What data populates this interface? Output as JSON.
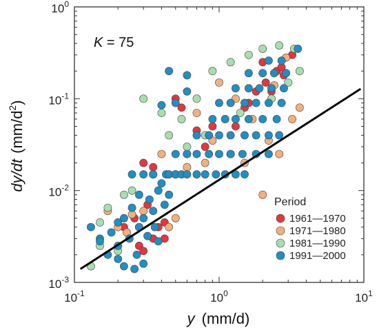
{
  "chart_data": {
    "type": "scatter",
    "xscale": "log",
    "yscale": "log",
    "xlim": [
      0.1,
      10
    ],
    "ylim": [
      0.001,
      1
    ],
    "grid": false,
    "xlabel": {
      "var": "y",
      "unit": "(mm/d)"
    },
    "ylabel": {
      "var": "dy/dt",
      "unit": "(mm/d",
      "unit_sup": "2",
      "unit_close": ")"
    },
    "x_ticks": [
      {
        "value": 0.1,
        "base": "10",
        "exp": "-1"
      },
      {
        "value": 1,
        "base": "10",
        "exp": "0"
      },
      {
        "value": 10,
        "base": "10",
        "exp": "1"
      }
    ],
    "y_ticks": [
      {
        "value": 0.001,
        "base": "10",
        "exp": "-3"
      },
      {
        "value": 0.01,
        "base": "10",
        "exp": "-2"
      },
      {
        "value": 0.1,
        "base": "10",
        "exp": "-1"
      },
      {
        "value": 1,
        "base": "10",
        "exp": "0"
      }
    ],
    "annotation": {
      "symbol": "K",
      "text": " = 75"
    },
    "fit_line": {
      "x": [
        0.11,
        9.5
      ],
      "y": [
        0.0014,
        0.128
      ],
      "color": "#000000"
    },
    "legend": {
      "title": "Period",
      "position": "bottom-right"
    },
    "series": [
      {
        "name": "1961—1970",
        "color": "#e8343c",
        "points": [
          [
            0.28,
            0.0025
          ],
          [
            0.3,
            0.0022
          ],
          [
            0.35,
            0.003
          ],
          [
            0.38,
            0.004
          ],
          [
            0.42,
            0.0045
          ],
          [
            0.32,
            0.007
          ],
          [
            0.3,
            0.02
          ],
          [
            0.35,
            0.018
          ],
          [
            0.5,
            0.015
          ],
          [
            0.6,
            0.025
          ],
          [
            0.8,
            0.03
          ],
          [
            0.7,
            0.045
          ],
          [
            0.9,
            0.05
          ],
          [
            1.1,
            0.06
          ],
          [
            1.3,
            0.05
          ],
          [
            1.5,
            0.08
          ],
          [
            1.8,
            0.12
          ],
          [
            2.1,
            0.15
          ],
          [
            2.5,
            0.2
          ],
          [
            2.8,
            0.18
          ],
          [
            3.2,
            0.3
          ],
          [
            2.7,
            0.22
          ],
          [
            0.5,
            0.1
          ],
          [
            0.55,
            0.08
          ],
          [
            0.42,
            0.003
          ],
          [
            0.22,
            0.004
          ],
          [
            0.26,
            0.005
          ],
          [
            2.3,
            0.12
          ],
          [
            1.6,
            0.09
          ],
          [
            2.0,
            0.25
          ]
        ]
      },
      {
        "name": "1971—1980",
        "color": "#f4b07a",
        "points": [
          [
            0.17,
            0.006
          ],
          [
            0.2,
            0.004
          ],
          [
            0.25,
            0.0055
          ],
          [
            0.3,
            0.006
          ],
          [
            0.45,
            0.004
          ],
          [
            0.5,
            0.005
          ],
          [
            0.6,
            0.018
          ],
          [
            0.8,
            0.02
          ],
          [
            1.2,
            0.025
          ],
          [
            1.5,
            0.02
          ],
          [
            2.2,
            0.035
          ],
          [
            2.6,
            0.025
          ],
          [
            3.2,
            0.06
          ],
          [
            3.6,
            0.08
          ],
          [
            2.0,
            0.009
          ],
          [
            0.4,
            0.025
          ],
          [
            0.7,
            0.07
          ],
          [
            1.0,
            0.15
          ],
          [
            1.3,
            0.1
          ],
          [
            2.9,
            0.28
          ],
          [
            2.4,
            0.14
          ],
          [
            1.7,
            0.06
          ],
          [
            0.9,
            0.035
          ],
          [
            0.28,
            0.004
          ],
          [
            0.23,
            0.0035
          ]
        ]
      },
      {
        "name": "1981—1990",
        "color": "#a8ddb0",
        "points": [
          [
            0.15,
            0.0045
          ],
          [
            0.17,
            0.0065
          ],
          [
            0.15,
            0.0025
          ],
          [
            0.13,
            0.0015
          ],
          [
            0.2,
            0.0022
          ],
          [
            0.22,
            0.009
          ],
          [
            0.25,
            0.01
          ],
          [
            0.35,
            0.015
          ],
          [
            0.45,
            0.04
          ],
          [
            0.55,
            0.06
          ],
          [
            0.3,
            0.1
          ],
          [
            0.4,
            0.07
          ],
          [
            0.7,
            0.1
          ],
          [
            0.9,
            0.2
          ],
          [
            1.2,
            0.25
          ],
          [
            1.6,
            0.3
          ],
          [
            2.0,
            0.35
          ],
          [
            2.6,
            0.38
          ],
          [
            3.3,
            0.35
          ],
          [
            3.6,
            0.2
          ],
          [
            3.0,
            0.15
          ],
          [
            2.3,
            0.1
          ],
          [
            1.4,
            0.07
          ],
          [
            0.8,
            0.04
          ],
          [
            0.6,
            0.03
          ]
        ]
      },
      {
        "name": "1991—2000",
        "color": "#1f8fc6",
        "points": [
          [
            0.13,
            0.004
          ],
          [
            0.15,
            0.003
          ],
          [
            0.15,
            0.0028
          ],
          [
            0.17,
            0.002
          ],
          [
            0.18,
            0.0035
          ],
          [
            0.2,
            0.0045
          ],
          [
            0.2,
            0.0025
          ],
          [
            0.22,
            0.005
          ],
          [
            0.22,
            0.0015
          ],
          [
            0.24,
            0.003
          ],
          [
            0.25,
            0.0065
          ],
          [
            0.26,
            0.0014
          ],
          [
            0.28,
            0.004
          ],
          [
            0.28,
            0.009
          ],
          [
            0.3,
            0.005
          ],
          [
            0.3,
            0.0016
          ],
          [
            0.32,
            0.0032
          ],
          [
            0.33,
            0.008
          ],
          [
            0.35,
            0.006
          ],
          [
            0.36,
            0.004
          ],
          [
            0.38,
            0.01
          ],
          [
            0.38,
            0.0028
          ],
          [
            0.4,
            0.012
          ],
          [
            0.42,
            0.007
          ],
          [
            0.45,
            0.009
          ],
          [
            0.43,
            0.015
          ],
          [
            0.25,
            0.015
          ],
          [
            0.3,
            0.015
          ],
          [
            0.35,
            0.015
          ],
          [
            0.45,
            0.015
          ],
          [
            0.5,
            0.015
          ],
          [
            0.55,
            0.015
          ],
          [
            0.6,
            0.015
          ],
          [
            0.7,
            0.015
          ],
          [
            0.8,
            0.015
          ],
          [
            0.95,
            0.015
          ],
          [
            1.1,
            0.015
          ],
          [
            1.3,
            0.015
          ],
          [
            1.5,
            0.015
          ],
          [
            0.5,
            0.025
          ],
          [
            0.6,
            0.025
          ],
          [
            0.7,
            0.025
          ],
          [
            0.85,
            0.025
          ],
          [
            1.0,
            0.025
          ],
          [
            1.2,
            0.025
          ],
          [
            1.45,
            0.025
          ],
          [
            1.8,
            0.025
          ],
          [
            2.2,
            0.025
          ],
          [
            0.7,
            0.04
          ],
          [
            0.85,
            0.04
          ],
          [
            1.0,
            0.04
          ],
          [
            1.2,
            0.04
          ],
          [
            1.5,
            0.04
          ],
          [
            1.8,
            0.04
          ],
          [
            2.2,
            0.04
          ],
          [
            2.6,
            0.04
          ],
          [
            0.9,
            0.06
          ],
          [
            1.1,
            0.06
          ],
          [
            1.3,
            0.06
          ],
          [
            1.6,
            0.06
          ],
          [
            2.0,
            0.06
          ],
          [
            2.5,
            0.06
          ],
          [
            1.0,
            0.09
          ],
          [
            1.2,
            0.09
          ],
          [
            1.5,
            0.09
          ],
          [
            1.8,
            0.09
          ],
          [
            2.2,
            0.09
          ],
          [
            2.7,
            0.09
          ],
          [
            1.3,
            0.13
          ],
          [
            1.6,
            0.13
          ],
          [
            1.9,
            0.13
          ],
          [
            2.3,
            0.13
          ],
          [
            2.8,
            0.13
          ],
          [
            1.6,
            0.19
          ],
          [
            2.0,
            0.19
          ],
          [
            2.4,
            0.19
          ],
          [
            2.9,
            0.19
          ],
          [
            2.2,
            0.26
          ],
          [
            2.7,
            0.26
          ],
          [
            3.5,
            0.35
          ],
          [
            0.6,
            0.12
          ],
          [
            0.6,
            0.18
          ],
          [
            0.45,
            0.2
          ],
          [
            0.4,
            0.085
          ],
          [
            0.5,
            0.09
          ],
          [
            0.2,
            0.0018
          ],
          [
            0.27,
            0.002
          ]
        ]
      }
    ]
  }
}
